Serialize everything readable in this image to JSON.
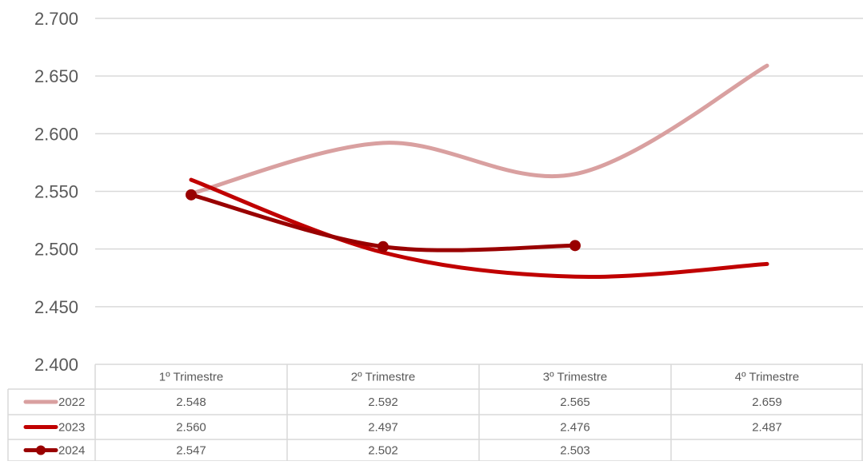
{
  "chart_data": {
    "type": "line",
    "categories": [
      "1º Trimestre",
      "2º Trimestre",
      "3º Trimestre",
      "4º Trimestre"
    ],
    "y_ticks": [
      "2.400",
      "2.450",
      "2.500",
      "2.550",
      "2.600",
      "2.650",
      "2.700"
    ],
    "ylim": [
      2400,
      2700
    ],
    "ystep": 50,
    "grid": true,
    "smooth": true,
    "legend": "data-table-below",
    "series": [
      {
        "name": "2022",
        "values": [
          2548,
          2592,
          2565,
          2659
        ],
        "labels": [
          "2.548",
          "2.592",
          "2.565",
          "2.659"
        ],
        "color": "#d9a0a0",
        "markers": false
      },
      {
        "name": "2023",
        "values": [
          2560,
          2497,
          2476,
          2487
        ],
        "labels": [
          "2.560",
          "2.497",
          "2.476",
          "2.487"
        ],
        "color": "#c00000",
        "markers": false
      },
      {
        "name": "2024",
        "values": [
          2547,
          2502,
          2503,
          null
        ],
        "labels": [
          "2.547",
          "2.502",
          "2.503",
          ""
        ],
        "color": "#990000",
        "markers": true
      }
    ]
  },
  "colors": {
    "gridline": "#d9d9d9",
    "table_border": "#d9d9d9",
    "axis_text": "#595959"
  }
}
